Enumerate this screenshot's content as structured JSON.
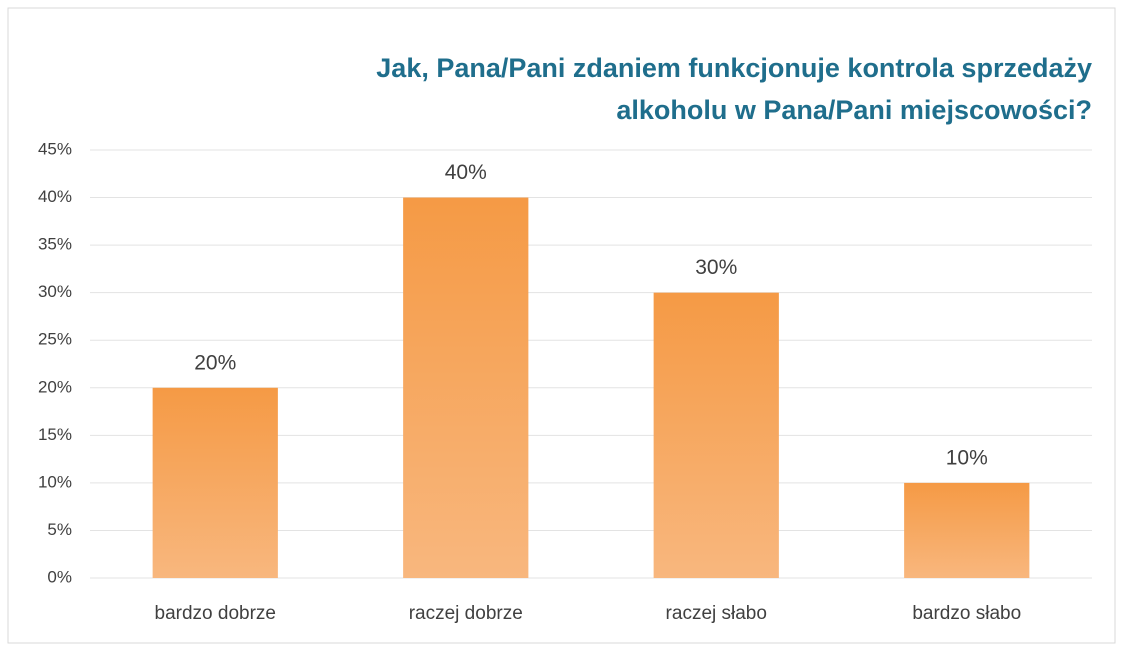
{
  "chart_data": {
    "type": "bar",
    "title": [
      "Jak, Pana/Pani  zdaniem funkcjonuje kontrola sprzedaży",
      "alkoholu w Pana/Pani  miejscowości?"
    ],
    "categories": [
      "bardzo dobrze",
      "raczej dobrze",
      "raczej słabo",
      "bardzo słabo"
    ],
    "values": [
      20,
      40,
      30,
      10
    ],
    "value_labels": [
      "20%",
      "40%",
      "30%",
      "10%"
    ],
    "color": "#f59a45",
    "ylim": [
      0,
      45
    ],
    "yticks": [
      {
        "value": 0,
        "label": "0%"
      },
      {
        "value": 5,
        "label": "5%"
      },
      {
        "value": 10,
        "label": "10%"
      },
      {
        "value": 15,
        "label": "15%"
      },
      {
        "value": 20,
        "label": "20%"
      },
      {
        "value": 25,
        "label": "25%"
      },
      {
        "value": 30,
        "label": "30%"
      },
      {
        "value": 35,
        "label": "35%"
      },
      {
        "value": 40,
        "label": "40%"
      },
      {
        "value": 45,
        "label": "45%"
      }
    ],
    "grid": true
  }
}
